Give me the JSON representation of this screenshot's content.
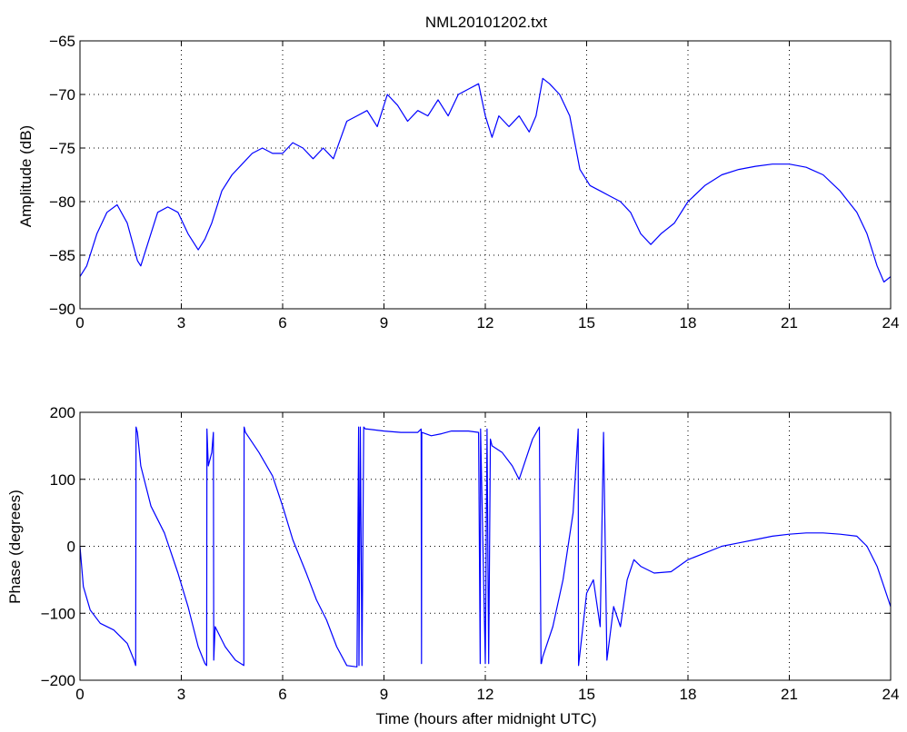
{
  "figure": {
    "title": "NML20101202.txt",
    "line_color": "#0000ff"
  },
  "chart_data": [
    {
      "type": "line",
      "title": "NML20101202.txt",
      "xlabel": "",
      "ylabel": "Amplitude (dB)",
      "xlim": [
        0,
        24
      ],
      "ylim": [
        -90,
        -65
      ],
      "xticks": [
        0,
        3,
        6,
        9,
        12,
        15,
        18,
        21,
        24
      ],
      "yticks": [
        -90,
        -85,
        -80,
        -75,
        -70,
        -65
      ],
      "xtick_labels": [
        "0",
        "3",
        "6",
        "9",
        "12",
        "15",
        "18",
        "21",
        "24"
      ],
      "ytick_labels": [
        "−90",
        "−85",
        "−80",
        "−75",
        "−70",
        "−65"
      ],
      "grid": true,
      "series": [
        {
          "x": [
            0,
            0.2,
            0.5,
            0.8,
            1.1,
            1.4,
            1.7,
            1.8,
            2.0,
            2.3,
            2.6,
            2.9,
            3.2,
            3.5,
            3.7,
            3.9,
            4.2,
            4.5,
            4.8,
            5.1,
            5.4,
            5.7,
            6.0,
            6.3,
            6.6,
            6.9,
            7.2,
            7.5,
            7.9,
            8.2,
            8.5,
            8.8,
            9.1,
            9.4,
            9.7,
            10.0,
            10.3,
            10.6,
            10.9,
            11.2,
            11.5,
            11.8,
            12.0,
            12.2,
            12.4,
            12.7,
            13.0,
            13.3,
            13.5,
            13.7,
            13.9,
            14.2,
            14.5,
            14.8,
            15.1,
            15.4,
            15.7,
            16.0,
            16.3,
            16.6,
            16.9,
            17.2,
            17.6,
            18.0,
            18.5,
            19.0,
            19.5,
            20.0,
            20.5,
            21.0,
            21.5,
            22.0,
            22.5,
            23.0,
            23.3,
            23.6,
            23.8,
            24.0
          ],
          "y": [
            -87,
            -86,
            -83,
            -81,
            -80.3,
            -82,
            -85.5,
            -86,
            -84,
            -81,
            -80.5,
            -81,
            -83,
            -84.5,
            -83.5,
            -82,
            -79,
            -77.5,
            -76.5,
            -75.5,
            -75,
            -75.5,
            -75.5,
            -74.5,
            -75,
            -76,
            -75,
            -76,
            -72.5,
            -72,
            -71.5,
            -73,
            -70,
            -71,
            -72.5,
            -71.5,
            -72,
            -70.5,
            -72,
            -70,
            -69.5,
            -69,
            -72,
            -74,
            -72,
            -73,
            -72,
            -73.5,
            -72,
            -68.5,
            -69,
            -70,
            -72,
            -77,
            -78.5,
            -79,
            -79.5,
            -80,
            -81,
            -83,
            -84,
            -83,
            -82,
            -80,
            -78.5,
            -77.5,
            -77,
            -76.7,
            -76.5,
            -76.5,
            -76.8,
            -77.5,
            -79,
            -81,
            -83,
            -86,
            -87.5,
            -87
          ]
        }
      ]
    },
    {
      "type": "line",
      "title": "",
      "xlabel": "Time (hours after midnight UTC)",
      "ylabel": "Phase (degrees)",
      "xlim": [
        0,
        24
      ],
      "ylim": [
        -200,
        200
      ],
      "xticks": [
        0,
        3,
        6,
        9,
        12,
        15,
        18,
        21,
        24
      ],
      "yticks": [
        -200,
        -100,
        0,
        100,
        200
      ],
      "xtick_labels": [
        "0",
        "3",
        "6",
        "9",
        "12",
        "15",
        "18",
        "21",
        "24"
      ],
      "ytick_labels": [
        "−200",
        "−100",
        "0",
        "100",
        "200"
      ],
      "grid": true,
      "series": [
        {
          "x": [
            0,
            0.1,
            0.3,
            0.6,
            1.0,
            1.4,
            1.6,
            1.65,
            1.66,
            1.7,
            1.8,
            2.1,
            2.5,
            2.9,
            3.2,
            3.5,
            3.7,
            3.75,
            3.76,
            3.8,
            3.9,
            3.95,
            3.96,
            4.0,
            4.3,
            4.6,
            4.85,
            4.86,
            4.9,
            5.3,
            5.7,
            6.0,
            6.3,
            6.7,
            7.0,
            7.3,
            7.6,
            7.9,
            8.2,
            8.25,
            8.26,
            8.3,
            8.35,
            8.4,
            8.45,
            8.5,
            9.0,
            9.5,
            10.0,
            10.1,
            10.11,
            10.12,
            10.4,
            10.7,
            11.0,
            11.5,
            11.8,
            11.85,
            11.86,
            12.0,
            12.05,
            12.1,
            12.15,
            12.2,
            12.5,
            12.8,
            13.0,
            13.2,
            13.4,
            13.6,
            13.65,
            13.66,
            13.7,
            14.0,
            14.3,
            14.6,
            14.75,
            14.76,
            14.8,
            15.0,
            15.2,
            15.4,
            15.5,
            15.6,
            15.8,
            16.0,
            16.2,
            16.4,
            16.6,
            17.0,
            17.5,
            18.0,
            18.5,
            19.0,
            19.5,
            20.0,
            20.5,
            21.0,
            21.5,
            22.0,
            22.5,
            23.0,
            23.3,
            23.6,
            23.8,
            24.0
          ],
          "y": [
            0,
            -60,
            -95,
            -115,
            -125,
            -145,
            -170,
            -178,
            178,
            170,
            120,
            60,
            20,
            -40,
            -90,
            -150,
            -175,
            -178,
            175,
            120,
            140,
            170,
            -170,
            -120,
            -150,
            -170,
            -178,
            178,
            170,
            140,
            105,
            60,
            10,
            -40,
            -80,
            -110,
            -150,
            -178,
            -180,
            178,
            -178,
            178,
            -178,
            178,
            175,
            175,
            172,
            170,
            170,
            175,
            -175,
            170,
            165,
            168,
            172,
            172,
            170,
            -175,
            175,
            -175,
            175,
            -175,
            160,
            150,
            140,
            120,
            100,
            130,
            160,
            178,
            -175,
            -175,
            -165,
            -120,
            -50,
            50,
            175,
            -178,
            -160,
            -70,
            -50,
            -120,
            170,
            -170,
            -90,
            -120,
            -50,
            -20,
            -30,
            -40,
            -38,
            -20,
            -10,
            0,
            5,
            10,
            15,
            18,
            20,
            20,
            18,
            15,
            0,
            -30,
            -60,
            -90
          ]
        }
      ]
    }
  ]
}
